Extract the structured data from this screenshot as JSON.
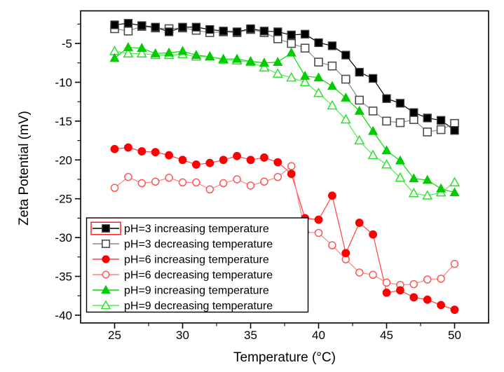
{
  "chart_data": {
    "type": "line",
    "title": "",
    "xlabel": "Temperature (°C)",
    "ylabel": "Zeta Potential (mV)",
    "xlim": [
      22.5,
      52.5
    ],
    "ylim": [
      -41.0,
      -0.8
    ],
    "x_major_ticks": [
      25,
      30,
      35,
      40,
      45,
      50
    ],
    "x_minor_ticks": [
      27.5,
      32.5,
      37.5,
      42.5,
      47.5
    ],
    "y_major_ticks": [
      -5,
      -10,
      -15,
      -20,
      -25,
      -30,
      -35,
      -40
    ],
    "y_minor_ticks": [
      -2.5,
      -7.5,
      -12.5,
      -17.5,
      -22.5,
      -27.5,
      -32.5,
      -37.5
    ],
    "grid": false,
    "legend_position": "bottom-left",
    "legend_highlight_first_symbol": true,
    "legend_highlight_color": "#ff0000",
    "x": [
      25,
      26,
      27,
      28,
      29,
      30,
      31,
      32,
      33,
      34,
      35,
      36,
      37,
      38,
      39,
      40,
      41,
      42,
      43,
      44,
      45,
      46,
      47,
      48,
      49,
      50
    ],
    "series": [
      {
        "name": "pH=3 increasing temperature",
        "marker": "square-filled",
        "color": "#000000",
        "line_color": "#000000",
        "values": [
          -2.6,
          -2.4,
          -2.7,
          -2.9,
          -3.5,
          -2.9,
          -2.9,
          -3.2,
          -3.4,
          -3.5,
          -3.1,
          -3.4,
          -3.5,
          -3.9,
          -3.8,
          -4.9,
          -5.3,
          -6.5,
          -8.7,
          -9.5,
          -12.1,
          -12.7,
          -13.9,
          -14.6,
          -14.9,
          -16.2
        ]
      },
      {
        "name": "pH=3 decreasing temperature",
        "marker": "square-open",
        "color": "#4d4d4d",
        "line_color": "#8c8c8c",
        "values": [
          -3.1,
          -3.4,
          -2.8,
          -3.0,
          -3.1,
          -3.0,
          -3.3,
          -3.6,
          -3.5,
          -3.6,
          -3.2,
          -3.6,
          -4.4,
          -5.0,
          -5.6,
          -7.4,
          -7.9,
          -9.6,
          -12.3,
          -13.7,
          -15.0,
          -15.2,
          -14.8,
          -16.4,
          -16.1,
          -15.3
        ]
      },
      {
        "name": "pH=6 increasing temperature",
        "marker": "circle-filled",
        "color": "#ff0000",
        "line_color": "#ff4040",
        "values": [
          -18.6,
          -18.4,
          -18.9,
          -19.0,
          -19.4,
          -20.0,
          -20.6,
          -20.4,
          -20.0,
          -19.5,
          -20.0,
          -19.7,
          -20.3,
          -21.8,
          -27.5,
          -27.7,
          -24.6,
          -32.0,
          -28.1,
          -29.6,
          -37.1,
          -36.8,
          -37.7,
          -38.0,
          -38.7,
          -39.3
        ]
      },
      {
        "name": "pH=6 decreasing temperature",
        "marker": "circle-open",
        "color": "#ff5555",
        "line_color": "#ff8080",
        "values": [
          -23.6,
          -22.2,
          -23.0,
          -22.8,
          -22.3,
          -22.9,
          -22.9,
          -23.8,
          -23.0,
          -22.5,
          -23.3,
          -22.8,
          -22.2,
          -20.8,
          -29.3,
          -29.4,
          -31.0,
          -32.8,
          -34.5,
          -34.8,
          -35.8,
          -36.1,
          -36.0,
          -35.4,
          -35.3,
          -33.4
        ]
      },
      {
        "name": "pH=9 increasing temperature",
        "marker": "triangle-filled",
        "color": "#00cc00",
        "line_color": "#00dd00",
        "values": [
          -6.9,
          -5.5,
          -5.6,
          -6.3,
          -6.2,
          -6.0,
          -6.5,
          -6.7,
          -7.0,
          -7.0,
          -7.3,
          -7.5,
          -7.4,
          -6.2,
          -9.2,
          -9.4,
          -10.5,
          -12.0,
          -13.7,
          -16.3,
          -18.8,
          -20.1,
          -22.4,
          -22.6,
          -23.7,
          -24.2
        ]
      },
      {
        "name": "pH=9 decreasing temperature",
        "marker": "triangle-open",
        "color": "#2ae22a",
        "line_color": "#4cee4c",
        "values": [
          -6.0,
          -6.3,
          -6.3,
          -6.5,
          -6.5,
          -6.4,
          -6.7,
          -6.7,
          -7.1,
          -7.2,
          -7.4,
          -8.1,
          -8.9,
          -9.4,
          -10.0,
          -11.4,
          -13.0,
          -14.8,
          -17.5,
          -19.4,
          -20.6,
          -22.3,
          -24.3,
          -24.6,
          -24.2,
          -22.9
        ]
      }
    ]
  }
}
